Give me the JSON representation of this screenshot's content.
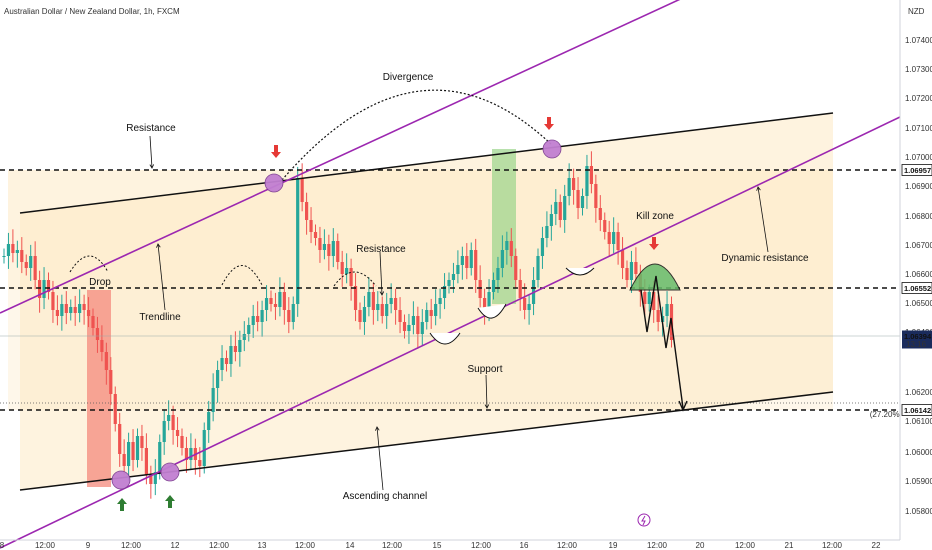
{
  "header": {
    "title": "Australian Dollar / New Zealand Dollar, 1h, FXCM"
  },
  "price_axis": {
    "currency_label": "NZD",
    "ticks": [
      "1.07400",
      "1.07300",
      "1.07200",
      "1.07100",
      "1.07000",
      "1.06900",
      "1.06800",
      "1.06700",
      "1.06600",
      "1.06500",
      "1.06400",
      "1.06200",
      "1.06100",
      "1.06000",
      "1.05900",
      "1.05800"
    ],
    "tags": [
      {
        "value": "1.06957",
        "style": "white"
      },
      {
        "value": "1.06552",
        "style": "white"
      },
      {
        "value": "1.06394",
        "sub": "13:16",
        "style": "current"
      },
      {
        "value": "1.06142",
        "style": "white"
      }
    ]
  },
  "time_axis": {
    "ticks": [
      "8",
      "12:00",
      "9",
      "12:00",
      "12",
      "12:00",
      "13",
      "12:00",
      "14",
      "12:00",
      "15",
      "12:00",
      "16",
      "12:00",
      "19",
      "12:00",
      "20",
      "12:00",
      "21",
      "12:00",
      "22"
    ]
  },
  "annotations": {
    "divergence": "Divergence",
    "resistance_top": "Resistance",
    "resistance_mid": "Resistance",
    "drop": "Drop",
    "trendline": "Trendline",
    "kill_zone": "Kill zone",
    "dynamic_resistance": "Dynamic resistance",
    "support": "Support",
    "ascending_channel": "Ascending channel",
    "fib_label": "(27.20%)"
  },
  "colors": {
    "bull": "#26a69a",
    "bear": "#ef5350",
    "trendline": "#9c27b0",
    "channel_fill": "#fde9c4",
    "marker_fill": "#c17fd1",
    "arrow_down": "#e53935",
    "arrow_up": "#2e7d32",
    "kill_zone": "#66bb6a",
    "current_tag": "#1a2b5c"
  },
  "chart_data": {
    "type": "candlestick",
    "title": "Australian Dollar / New Zealand Dollar, 1h, FXCM",
    "ylabel": "NZD",
    "ylim": [
      1.0574,
      1.0752
    ],
    "horizontal_levels": [
      1.06957,
      1.06552,
      1.06142
    ],
    "current_price": 1.06394,
    "ohlc_approx": [
      1.0668,
      1.0672,
      1.0669,
      1.067,
      1.0666,
      1.0664,
      1.0668,
      1.066,
      1.0654,
      1.066,
      1.0656,
      1.065,
      1.0648,
      1.0652,
      1.0649,
      1.0651,
      1.0649,
      1.0652,
      1.065,
      1.0648,
      1.0644,
      1.064,
      1.0636,
      1.063,
      1.0622,
      1.0612,
      1.0602,
      1.0598,
      1.0606,
      1.06,
      1.0608,
      1.0604,
      1.0595,
      1.0592,
      1.0596,
      1.0606,
      1.0613,
      1.0615,
      1.061,
      1.0608,
      1.0604,
      1.06,
      1.0604,
      1.06,
      1.0598,
      1.061,
      1.0616,
      1.0624,
      1.063,
      1.0634,
      1.0632,
      1.0638,
      1.0636,
      1.064,
      1.0642,
      1.0645,
      1.0648,
      1.0646,
      1.065,
      1.0654,
      1.0652,
      1.0651,
      1.0656,
      1.065,
      1.0646,
      1.0652,
      1.0694,
      1.0686,
      1.068,
      1.0676,
      1.0674,
      1.067,
      1.0672,
      1.0668,
      1.0673,
      1.0666,
      1.0662,
      1.0664,
      1.0658,
      1.065,
      1.0646,
      1.0651,
      1.0656,
      1.065,
      1.0652,
      1.0648,
      1.0652,
      1.0654,
      1.065,
      1.0646,
      1.0643,
      1.0645,
      1.0648,
      1.0642,
      1.0646,
      1.065,
      1.0648,
      1.0652,
      1.0654,
      1.0658,
      1.066,
      1.0662,
      1.0665,
      1.0668,
      1.0664,
      1.067,
      1.066,
      1.0654,
      1.065,
      1.0656,
      1.066,
      1.0664,
      1.067,
      1.0673,
      1.0668,
      1.066,
      1.0654,
      1.065,
      1.0652,
      1.066,
      1.0668,
      1.0674,
      1.0678,
      1.0682,
      1.0686,
      1.068,
      1.0688,
      1.0694,
      1.069,
      1.0684,
      1.0688,
      1.0698,
      1.0692,
      1.0684,
      1.068,
      1.0676,
      1.0672,
      1.0676,
      1.067,
      1.0664,
      1.066,
      1.0666,
      1.0662,
      1.0656,
      1.0652,
      1.0656,
      1.065,
      1.0646,
      1.0648,
      1.0652,
      1.064
    ]
  }
}
